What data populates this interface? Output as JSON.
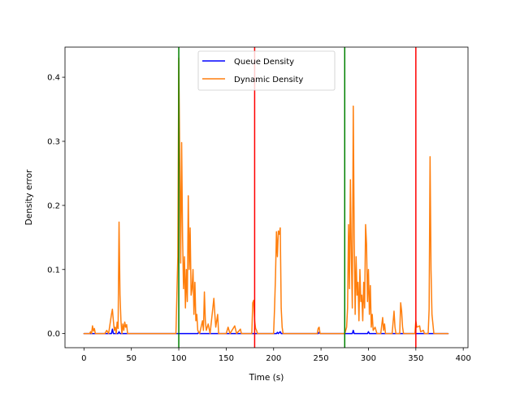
{
  "chart_data": {
    "type": "line",
    "title": "",
    "xlabel": "Time (s)",
    "ylabel": "Density error",
    "xlim": [
      -20,
      405
    ],
    "ylim": [
      -0.022,
      0.447
    ],
    "xticks": [
      0,
      50,
      100,
      150,
      200,
      250,
      300,
      350,
      400
    ],
    "yticks": [
      0.0,
      0.1,
      0.2,
      0.3,
      0.4
    ],
    "xtick_labels": [
      "0",
      "50",
      "100",
      "150",
      "200",
      "250",
      "300",
      "350",
      "400"
    ],
    "ytick_labels": [
      "0.0",
      "0.1",
      "0.2",
      "0.3",
      "0.4"
    ],
    "grid": false,
    "legend_position": "upper center",
    "vertical_lines": [
      {
        "x": 100,
        "color": "#008000"
      },
      {
        "x": 180,
        "color": "#ff0000"
      },
      {
        "x": 275,
        "color": "#008000"
      },
      {
        "x": 350,
        "color": "#ff0000"
      }
    ],
    "series": [
      {
        "name": "Queue Density",
        "color": "#0000ff",
        "points": [
          [
            0,
            0
          ],
          [
            29,
            0
          ],
          [
            30,
            0.007
          ],
          [
            31,
            0
          ],
          [
            36,
            0
          ],
          [
            37,
            0.003
          ],
          [
            38,
            0
          ],
          [
            120,
            0
          ],
          [
            121,
            0.002
          ],
          [
            122,
            0
          ],
          [
            203,
            0
          ],
          [
            204,
            0.002
          ],
          [
            205,
            0
          ],
          [
            207,
            0.003
          ],
          [
            208,
            0
          ],
          [
            247,
            0
          ],
          [
            248,
            0.002
          ],
          [
            249,
            0
          ],
          [
            283,
            0
          ],
          [
            284,
            0.005
          ],
          [
            285,
            0
          ],
          [
            299,
            0
          ],
          [
            300,
            0.003
          ],
          [
            301,
            0
          ],
          [
            384,
            0
          ]
        ]
      },
      {
        "name": "Dynamic Density",
        "color": "#ff7f0e",
        "points": [
          [
            0,
            0
          ],
          [
            6,
            0
          ],
          [
            7,
            0.003
          ],
          [
            8,
            0
          ],
          [
            9,
            0.012
          ],
          [
            10,
            0.004
          ],
          [
            11,
            0.008
          ],
          [
            12,
            0
          ],
          [
            22,
            0
          ],
          [
            24,
            0.005
          ],
          [
            26,
            0
          ],
          [
            29,
            0.03
          ],
          [
            30,
            0.038
          ],
          [
            31,
            0.02
          ],
          [
            32,
            0.005
          ],
          [
            33,
            0.01
          ],
          [
            34,
            0
          ],
          [
            35,
            0.018
          ],
          [
            36,
            0.008
          ],
          [
            37,
            0.174
          ],
          [
            38,
            0.06
          ],
          [
            39,
            0.02
          ],
          [
            40,
            0
          ],
          [
            41,
            0.015
          ],
          [
            42,
            0.005
          ],
          [
            43,
            0.018
          ],
          [
            44,
            0.01
          ],
          [
            45,
            0.014
          ],
          [
            46,
            0
          ],
          [
            97,
            0
          ],
          [
            98,
            0.06
          ],
          [
            99,
            0.12
          ],
          [
            100,
            0.43
          ],
          [
            101,
            0.27
          ],
          [
            102,
            0.11
          ],
          [
            103,
            0.298
          ],
          [
            104,
            0.15
          ],
          [
            105,
            0.07
          ],
          [
            106,
            0.12
          ],
          [
            107,
            0.04
          ],
          [
            108,
            0.1
          ],
          [
            109,
            0.05
          ],
          [
            110,
            0.215
          ],
          [
            111,
            0.1
          ],
          [
            112,
            0.165
          ],
          [
            113,
            0.06
          ],
          [
            114,
            0.07
          ],
          [
            115,
            0.1
          ],
          [
            116,
            0.03
          ],
          [
            117,
            0.08
          ],
          [
            118,
            0.02
          ],
          [
            119,
            0.03
          ],
          [
            120,
            0.005
          ],
          [
            122,
            0
          ],
          [
            125,
            0.02
          ],
          [
            126,
            0.005
          ],
          [
            127,
            0.065
          ],
          [
            128,
            0.02
          ],
          [
            129,
            0.005
          ],
          [
            131,
            0.015
          ],
          [
            133,
            0
          ],
          [
            137,
            0.055
          ],
          [
            138,
            0.03
          ],
          [
            139,
            0.01
          ],
          [
            141,
            0.03
          ],
          [
            142,
            0
          ],
          [
            150,
            0
          ],
          [
            152,
            0.01
          ],
          [
            154,
            0
          ],
          [
            159,
            0.012
          ],
          [
            161,
            0
          ],
          [
            165,
            0.007
          ],
          [
            166,
            0
          ],
          [
            177,
            0
          ],
          [
            178,
            0.048
          ],
          [
            179,
            0.052
          ],
          [
            180,
            0.02
          ],
          [
            181,
            0.008
          ],
          [
            182,
            0.005
          ],
          [
            183,
            0
          ],
          [
            200,
            0
          ],
          [
            201,
            0.04
          ],
          [
            202,
            0.09
          ],
          [
            203,
            0.159
          ],
          [
            204,
            0.12
          ],
          [
            205,
            0.16
          ],
          [
            206,
            0.155
          ],
          [
            207,
            0.165
          ],
          [
            208,
            0.04
          ],
          [
            209,
            0.01
          ],
          [
            210,
            0
          ],
          [
            246,
            0
          ],
          [
            247,
            0.008
          ],
          [
            248,
            0.01
          ],
          [
            249,
            0
          ],
          [
            275,
            0
          ],
          [
            277,
            0.01
          ],
          [
            278,
            0.04
          ],
          [
            279,
            0.17
          ],
          [
            280,
            0.07
          ],
          [
            281,
            0.24
          ],
          [
            282,
            0.12
          ],
          [
            283,
            0.04
          ],
          [
            284,
            0.355
          ],
          [
            285,
            0.15
          ],
          [
            286,
            0.03
          ],
          [
            287,
            0.12
          ],
          [
            288,
            0.06
          ],
          [
            289,
            0.08
          ],
          [
            290,
            0.02
          ],
          [
            291,
            0.1
          ],
          [
            292,
            0.05
          ],
          [
            293,
            0.06
          ],
          [
            294,
            0.02
          ],
          [
            295,
            0.08
          ],
          [
            296,
            0.04
          ],
          [
            297,
            0.17
          ],
          [
            298,
            0.14
          ],
          [
            299,
            0.05
          ],
          [
            300,
            0.1
          ],
          [
            301,
            0.03
          ],
          [
            302,
            0.075
          ],
          [
            303,
            0.01
          ],
          [
            304,
            0.03
          ],
          [
            305,
            0.005
          ],
          [
            307,
            0.01
          ],
          [
            309,
            0
          ],
          [
            313,
            0
          ],
          [
            315,
            0.025
          ],
          [
            316,
            0.005
          ],
          [
            317,
            0.015
          ],
          [
            318,
            0
          ],
          [
            325,
            0
          ],
          [
            327,
            0.035
          ],
          [
            328,
            0.01
          ],
          [
            329,
            0
          ],
          [
            333,
            0
          ],
          [
            334,
            0.048
          ],
          [
            335,
            0.035
          ],
          [
            336,
            0.01
          ],
          [
            337,
            0
          ],
          [
            349,
            0
          ],
          [
            350,
            0.02
          ],
          [
            351,
            0.01
          ],
          [
            354,
            0.012
          ],
          [
            355,
            0.003
          ],
          [
            358,
            0.005
          ],
          [
            359,
            0
          ],
          [
            363,
            0
          ],
          [
            364,
            0.038
          ],
          [
            365,
            0.276
          ],
          [
            366,
            0.1
          ],
          [
            367,
            0.03
          ],
          [
            368,
            0.015
          ],
          [
            369,
            0
          ],
          [
            384,
            0
          ]
        ]
      }
    ]
  }
}
